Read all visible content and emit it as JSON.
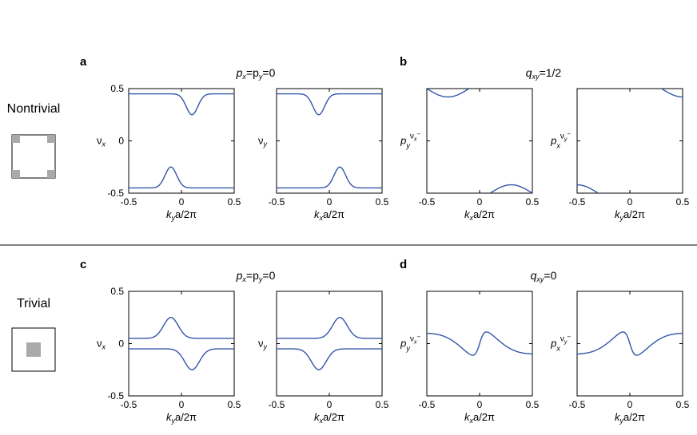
{
  "rows": [
    {
      "label": "Nontrivial",
      "inset": "nontrivial"
    },
    {
      "label": "Trivial",
      "inset": "trivial"
    }
  ],
  "panels": [
    {
      "letter": "a",
      "title_parts": [
        "p",
        "x",
        "=p",
        "y",
        "=0"
      ],
      "title_kind": "pxpy"
    },
    {
      "letter": "b",
      "title_parts": [
        "q",
        "xy",
        "=1/2"
      ],
      "title_kind": "q"
    },
    {
      "letter": "c",
      "title_parts": [
        "p",
        "x",
        "=p",
        "y",
        "=0"
      ],
      "title_kind": "pxpy"
    },
    {
      "letter": "d",
      "title_parts": [
        "q",
        "xy",
        "=0"
      ],
      "title_kind": "q"
    }
  ],
  "ticks": {
    "x": [
      "-0.5",
      "0",
      "0.5"
    ],
    "y": [
      "0.5",
      "0",
      "-0.5"
    ]
  },
  "colors": {
    "line": "#3355a8",
    "axis": "#000000",
    "inset": "#aaaaaa"
  },
  "chart_data": [
    {
      "id": "a1",
      "type": "line",
      "xlabel": {
        "main": "k",
        "sub": "y",
        "rest": "a/2π"
      },
      "ylabel": {
        "main": "ν",
        "sub": "x"
      },
      "xlim": [
        -0.5,
        0.5
      ],
      "ylim": [
        -0.5,
        0.5
      ],
      "curve": "nt_vx"
    },
    {
      "id": "a2",
      "type": "line",
      "xlabel": {
        "main": "k",
        "sub": "x",
        "rest": "a/2π"
      },
      "ylabel": {
        "main": "ν",
        "sub": "y"
      },
      "xlim": [
        -0.5,
        0.5
      ],
      "ylim": [
        -0.5,
        0.5
      ],
      "curve": "nt_vy"
    },
    {
      "id": "b1",
      "type": "line",
      "xlabel": {
        "main": "k",
        "sub": "x",
        "rest": "a/2π"
      },
      "ylabel": {
        "main": "p",
        "sub": "y",
        "sup": "ν",
        "supsub": "x",
        "supsup": "−"
      },
      "xlim": [
        -0.5,
        0.5
      ],
      "ylim": [
        -0.5,
        0.5
      ],
      "curve": "nt_py"
    },
    {
      "id": "b2",
      "type": "line",
      "xlabel": {
        "main": "k",
        "sub": "y",
        "rest": "a/2π"
      },
      "ylabel": {
        "main": "p",
        "sub": "x",
        "sup": "ν",
        "supsub": "y",
        "supsup": "−"
      },
      "xlim": [
        -0.5,
        0.5
      ],
      "ylim": [
        -0.5,
        0.5
      ],
      "curve": "nt_px"
    },
    {
      "id": "c1",
      "type": "line",
      "xlabel": {
        "main": "k",
        "sub": "y",
        "rest": "a/2π"
      },
      "ylabel": {
        "main": "ν",
        "sub": "x"
      },
      "xlim": [
        -0.5,
        0.5
      ],
      "ylim": [
        -0.5,
        0.5
      ],
      "curve": "t_vx"
    },
    {
      "id": "c2",
      "type": "line",
      "xlabel": {
        "main": "k",
        "sub": "x",
        "rest": "a/2π"
      },
      "ylabel": {
        "main": "ν",
        "sub": "y"
      },
      "xlim": [
        -0.5,
        0.5
      ],
      "ylim": [
        -0.5,
        0.5
      ],
      "curve": "t_vy"
    },
    {
      "id": "d1",
      "type": "line",
      "xlabel": {
        "main": "k",
        "sub": "x",
        "rest": "a/2π"
      },
      "ylabel": {
        "main": "p",
        "sub": "y",
        "sup": "ν",
        "supsub": "x",
        "supsup": "−"
      },
      "xlim": [
        -0.5,
        0.5
      ],
      "ylim": [
        -0.5,
        0.5
      ],
      "curve": "t_py"
    },
    {
      "id": "d2",
      "type": "line",
      "xlabel": {
        "main": "k",
        "sub": "y",
        "rest": "a/2π"
      },
      "ylabel": {
        "main": "p",
        "sub": "x",
        "sup": "ν",
        "supsub": "y",
        "supsup": "−"
      },
      "xlim": [
        -0.5,
        0.5
      ],
      "ylim": [
        -0.5,
        0.5
      ],
      "curve": "t_px"
    }
  ]
}
